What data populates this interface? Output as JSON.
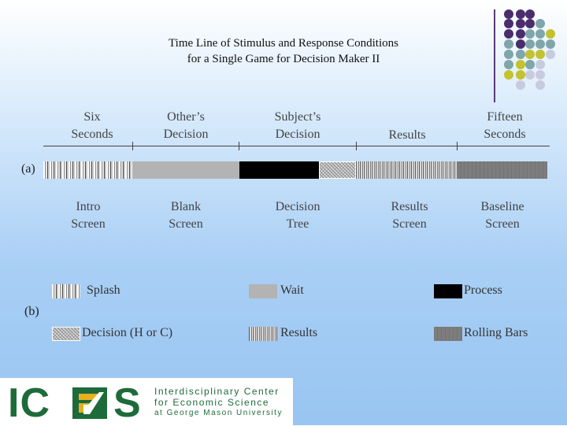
{
  "title": {
    "line1": "Time Line of Stimulus and Response Conditions",
    "line2": "for a Single Game for Decision Maker II"
  },
  "timeline_top": [
    {
      "line1": "Six",
      "line2": "Seconds"
    },
    {
      "line1": "Other’s",
      "line2": "Decision"
    },
    {
      "line1": "Subject’s",
      "line2": "Decision"
    },
    {
      "line1": "Results",
      "line2": ""
    },
    {
      "line1": "Fifteen",
      "line2": "Seconds"
    }
  ],
  "timeline_bottom": [
    {
      "line1": "Intro",
      "line2": "Screen"
    },
    {
      "line1": "Blank",
      "line2": "Screen"
    },
    {
      "line1": "Decision",
      "line2": "Tree"
    },
    {
      "line1": "Results",
      "line2": "Screen"
    },
    {
      "line1": "Baseline",
      "line2": "Screen"
    }
  ],
  "label_a": "(a)",
  "label_b": "(b)",
  "legend": [
    {
      "label": "Splash",
      "pattern": "splash"
    },
    {
      "label": "Wait",
      "pattern": "wait"
    },
    {
      "label": "Process",
      "pattern": "process"
    },
    {
      "label": "Decision (H or C)",
      "pattern": "decision"
    },
    {
      "label": "Results",
      "pattern": "results"
    },
    {
      "label": "Rolling Bars",
      "pattern": "rolling"
    }
  ],
  "logo": {
    "letters_left": "IC",
    "letter_right": "S",
    "line1": "Interdisciplinary Center",
    "line2": "for Economic Science",
    "line3": "at George Mason University"
  },
  "colors": {
    "purple": "#4b2d6e",
    "teal": "#7fa6aa",
    "olive": "#c4c22e",
    "lavender": "#c8cadf",
    "logo_green": "#1d6b3a",
    "logo_gold": "#e6b020"
  }
}
